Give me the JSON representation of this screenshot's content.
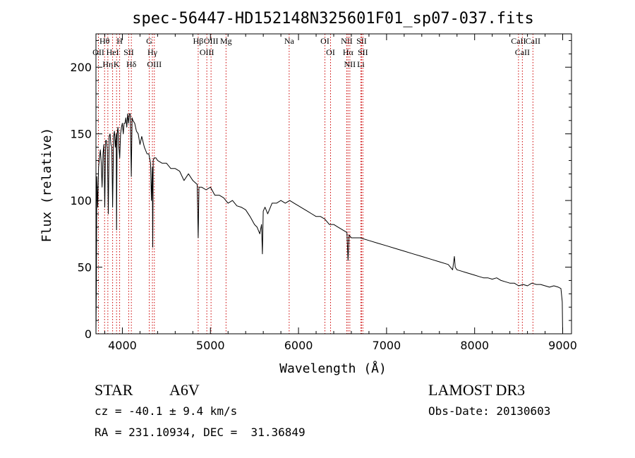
{
  "chart_data": {
    "type": "line",
    "title": "spec-56447-HD152148N325601F01_sp07-037.fits",
    "xlabel": "Wavelength (Å)",
    "ylabel": "Flux (relative)",
    "xlim": [
      3700,
      9100
    ],
    "ylim": [
      0,
      225
    ],
    "xticks": [
      4000,
      5000,
      6000,
      7000,
      8000,
      9000
    ],
    "xtick_labels": [
      "4000",
      "5000",
      "6000",
      "7000",
      "8000",
      "9000"
    ],
    "yticks": [
      0,
      50,
      100,
      150,
      200
    ],
    "ytick_labels": [
      "0",
      "50",
      "100",
      "150",
      "200"
    ],
    "grid": false,
    "series": [
      {
        "name": "flux",
        "x": [
          3700,
          3705,
          3710,
          3720,
          3730,
          3740,
          3750,
          3760,
          3770,
          3780,
          3790,
          3800,
          3810,
          3820,
          3830,
          3840,
          3850,
          3860,
          3870,
          3880,
          3889,
          3900,
          3910,
          3920,
          3930,
          3934,
          3940,
          3950,
          3960,
          3970,
          3980,
          3990,
          4000,
          4010,
          4020,
          4030,
          4040,
          4050,
          4060,
          4070,
          4080,
          4090,
          4101,
          4110,
          4120,
          4140,
          4160,
          4180,
          4200,
          4220,
          4250,
          4280,
          4300,
          4320,
          4330,
          4340,
          4345,
          4350,
          4360,
          4380,
          4400,
          4450,
          4500,
          4550,
          4600,
          4650,
          4700,
          4750,
          4800,
          4850,
          4861,
          4870,
          4900,
          4950,
          5000,
          5050,
          5100,
          5150,
          5200,
          5250,
          5300,
          5350,
          5400,
          5450,
          5500,
          5530,
          5560,
          5580,
          5590,
          5600,
          5620,
          5650,
          5700,
          5750,
          5800,
          5850,
          5900,
          5950,
          6000,
          6050,
          6100,
          6150,
          6200,
          6250,
          6300,
          6350,
          6400,
          6450,
          6500,
          6550,
          6563,
          6575,
          6600,
          6650,
          6700,
          6800,
          6900,
          7000,
          7100,
          7200,
          7300,
          7400,
          7500,
          7600,
          7700,
          7750,
          7770,
          7780,
          7800,
          7850,
          7900,
          7950,
          8000,
          8050,
          8100,
          8150,
          8200,
          8250,
          8300,
          8350,
          8400,
          8450,
          8500,
          8550,
          8600,
          8650,
          8700,
          8750,
          8800,
          8850,
          8900,
          8950,
          8980,
          8995,
          9000
        ],
        "values": [
          0,
          38,
          118,
          95,
          125,
          132,
          138,
          128,
          110,
          135,
          142,
          95,
          145,
          145,
          138,
          90,
          148,
          150,
          142,
          140,
          95,
          148,
          152,
          140,
          150,
          78,
          150,
          155,
          140,
          132,
          150,
          155,
          158,
          150,
          158,
          158,
          162,
          155,
          165,
          158,
          165,
          165,
          118,
          162,
          160,
          158,
          152,
          150,
          142,
          148,
          140,
          135,
          135,
          128,
          100,
          125,
          65,
          130,
          132,
          132,
          130,
          128,
          128,
          124,
          124,
          122,
          115,
          120,
          115,
          112,
          72,
          110,
          110,
          108,
          110,
          104,
          104,
          102,
          98,
          100,
          96,
          95,
          93,
          88,
          82,
          80,
          75,
          82,
          60,
          92,
          95,
          90,
          98,
          98,
          100,
          98,
          100,
          98,
          96,
          94,
          92,
          90,
          88,
          88,
          86,
          82,
          82,
          80,
          78,
          76,
          55,
          74,
          72,
          72,
          72,
          70,
          68,
          66,
          64,
          62,
          60,
          58,
          56,
          54,
          52,
          48,
          58,
          50,
          48,
          47,
          46,
          45,
          44,
          43,
          42,
          42,
          41,
          42,
          40,
          39,
          38,
          38,
          36,
          37,
          36,
          38,
          37,
          37,
          36,
          35,
          36,
          35,
          34,
          24,
          0
        ]
      }
    ],
    "line_markers": [
      {
        "label": "Hθ",
        "wavelength": 3798
      },
      {
        "label": "OII",
        "wavelength": 3728
      },
      {
        "label": "Hη",
        "wavelength": 3835
      },
      {
        "label": "HeI",
        "wavelength": 3889
      },
      {
        "label": "K",
        "wavelength": 3934
      },
      {
        "label": "H",
        "wavelength": 3969
      },
      {
        "label": "SII",
        "wavelength": 4072
      },
      {
        "label": "Hδ",
        "wavelength": 4102
      },
      {
        "label": "G",
        "wavelength": 4305
      },
      {
        "label": "Hγ",
        "wavelength": 4341
      },
      {
        "label": "OIII",
        "wavelength": 4363
      },
      {
        "label": "Hβ",
        "wavelength": 4861
      },
      {
        "label": "OIII",
        "wavelength": 4959
      },
      {
        "label": "OIII",
        "wavelength": 5007
      },
      {
        "label": "Mg",
        "wavelength": 5177
      },
      {
        "label": "Na",
        "wavelength": 5894
      },
      {
        "label": "OI",
        "wavelength": 6300
      },
      {
        "label": "OI",
        "wavelength": 6364
      },
      {
        "label": "NII",
        "wavelength": 6548
      },
      {
        "label": "Hα",
        "wavelength": 6563
      },
      {
        "label": "NII",
        "wavelength": 6583
      },
      {
        "label": "SII",
        "wavelength": 6716
      },
      {
        "label": "SII",
        "wavelength": 6731
      },
      {
        "label": "Li",
        "wavelength": 6708
      },
      {
        "label": "CaII",
        "wavelength": 8498
      },
      {
        "label": "CaII",
        "wavelength": 8542
      },
      {
        "label": "CaII",
        "wavelength": 8662
      }
    ]
  },
  "info": {
    "class": "STAR",
    "subclass": "A6V",
    "survey": "LAMOST DR3",
    "cz": "cz = -40.1 ± 9.4 km/s",
    "obs_date": "Obs-Date: 20130603",
    "coords": "RA = 231.10934, DEC =  31.36849"
  },
  "colors": {
    "spectrum": "#000000",
    "marker_line": "#cc0000",
    "text": "#000000"
  }
}
